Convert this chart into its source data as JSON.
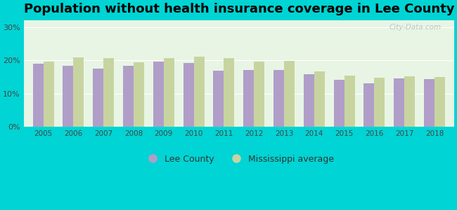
{
  "title": "Population without health insurance coverage in Lee County",
  "years": [
    2005,
    2006,
    2007,
    2008,
    2009,
    2010,
    2011,
    2012,
    2013,
    2014,
    2015,
    2016,
    2017,
    2018
  ],
  "lee_county": [
    19.0,
    18.3,
    17.6,
    18.4,
    19.7,
    19.2,
    16.8,
    17.1,
    17.0,
    15.8,
    14.1,
    13.1,
    14.5,
    14.3
  ],
  "ms_average": [
    19.7,
    20.8,
    20.7,
    19.4,
    20.6,
    21.1,
    20.7,
    19.7,
    19.8,
    16.7,
    15.3,
    14.8,
    15.2,
    15.0
  ],
  "lee_color": "#b09ec9",
  "ms_color": "#c8d4a0",
  "background_outer": "#00d4d4",
  "background_inner_top": "#e8f5e8",
  "background_inner_bottom": "#d4f0d4",
  "yticks": [
    0,
    10,
    20,
    30
  ],
  "ylim": [
    0,
    32
  ],
  "legend_lee": "Lee County",
  "legend_ms": "Mississippi average",
  "watermark": "City-Data.com",
  "title_fontsize": 13,
  "bar_width": 0.35
}
